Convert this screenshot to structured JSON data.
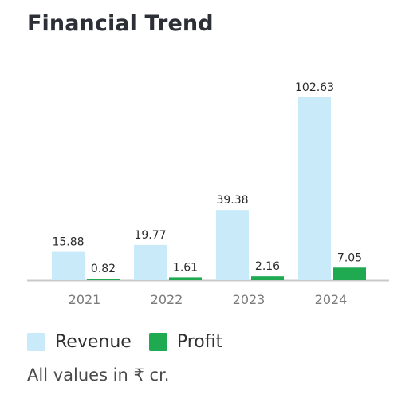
{
  "chart_data": {
    "type": "bar",
    "title": "Financial Trend",
    "categories": [
      "2021",
      "2022",
      "2023",
      "2024"
    ],
    "series": [
      {
        "name": "Revenue",
        "values": [
          15.88,
          19.77,
          39.38,
          102.63
        ],
        "color": "#c8eaf9"
      },
      {
        "name": "Profit",
        "values": [
          0.82,
          1.61,
          2.16,
          7.05
        ],
        "color": "#1faa52"
      }
    ],
    "value_labels": {
      "Revenue": [
        "15.88",
        "19.77",
        "39.38",
        "102.63"
      ],
      "Profit": [
        "0.82",
        "1.61",
        "2.16",
        "7.05"
      ]
    },
    "ylim": [
      0,
      102.63
    ],
    "grid": false,
    "legend_position": "bottom-left"
  },
  "footnote": "All values in ₹ cr."
}
